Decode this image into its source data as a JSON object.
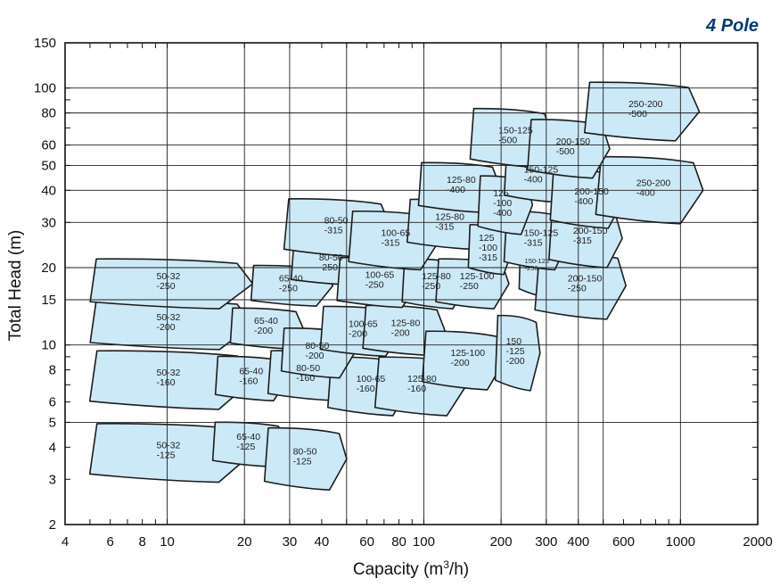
{
  "header": {
    "title": "4 Pole",
    "title_color": "#003a7a"
  },
  "colors": {
    "tile_fill": "#cce9f7",
    "tile_stroke": "#1c1c1c",
    "grid": "#222222"
  },
  "chart_data": {
    "type": "area",
    "title": "4 Pole",
    "xlabel": "Capacity (m3/h)",
    "ylabel": "Total Head (m)",
    "x_scale": "log",
    "y_scale": "log",
    "xlim": [
      4,
      2000
    ],
    "ylim": [
      2,
      150
    ],
    "grid": true,
    "x_ticks": [
      {
        "v": 4,
        "t": "4"
      },
      {
        "v": 6,
        "t": "6"
      },
      {
        "v": 8,
        "t": "8"
      },
      {
        "v": 10,
        "t": "10"
      },
      {
        "v": 20,
        "t": "20"
      },
      {
        "v": 30,
        "t": "30"
      },
      {
        "v": 40,
        "t": "40"
      },
      {
        "v": 60,
        "t": "60"
      },
      {
        "v": 80,
        "t": "80"
      },
      {
        "v": 100,
        "t": "100"
      },
      {
        "v": 200,
        "t": "200"
      },
      {
        "v": 300,
        "t": "300"
      },
      {
        "v": 400,
        "t": "400"
      },
      {
        "v": 600,
        "t": "600"
      },
      {
        "v": 1000,
        "t": "1000"
      },
      {
        "v": 2000,
        "t": "2000"
      }
    ],
    "y_ticks": [
      {
        "v": 2,
        "t": "2"
      },
      {
        "v": 3,
        "t": "3"
      },
      {
        "v": 4,
        "t": "4"
      },
      {
        "v": 5,
        "t": "5"
      },
      {
        "v": 6,
        "t": "6"
      },
      {
        "v": 8,
        "t": "8"
      },
      {
        "v": 10,
        "t": "10"
      },
      {
        "v": 15,
        "t": "15"
      },
      {
        "v": 20,
        "t": "20"
      },
      {
        "v": 30,
        "t": "30"
      },
      {
        "v": 40,
        "t": "40"
      },
      {
        "v": 50,
        "t": "50"
      },
      {
        "v": 60,
        "t": "60"
      },
      {
        "v": 80,
        "t": "80"
      },
      {
        "v": 100,
        "t": "100"
      },
      {
        "v": 150,
        "t": "150"
      }
    ],
    "x_grid": [
      10,
      20,
      30,
      50,
      100,
      200,
      300,
      400,
      500,
      1000
    ],
    "y_grid": [
      5,
      10,
      15,
      20,
      30,
      40,
      50,
      60,
      80,
      100
    ],
    "series": [
      {
        "name": "50-32\n-125",
        "q": 10,
        "h": 3.8,
        "dq": 1.95,
        "dh": 1.3
      },
      {
        "name": "65-40\n-125",
        "q": 20.5,
        "h": 4.1,
        "dq": 1.35,
        "dh": 1.22
      },
      {
        "name": "80-50\n-125",
        "q": 34,
        "h": 3.6,
        "dq": 1.4,
        "dh": 1.32
      },
      {
        "name": "50-32\n-160",
        "q": 10,
        "h": 7.3,
        "dq": 1.95,
        "dh": 1.3
      },
      {
        "name": "65-40\n-160",
        "q": 21,
        "h": 7.4,
        "dq": 1.35,
        "dh": 1.22
      },
      {
        "name": "80-50\n-160",
        "q": 35,
        "h": 7.6,
        "dq": 1.4,
        "dh": 1.25
      },
      {
        "name": "100-65\n-160",
        "q": 60,
        "h": 6.9,
        "dq": 1.4,
        "dh": 1.3
      },
      {
        "name": "125-80\n-160",
        "q": 95,
        "h": 6.9,
        "dq": 1.45,
        "dh": 1.3
      },
      {
        "name": "50-32\n-200",
        "q": 10,
        "h": 12.0,
        "dq": 1.95,
        "dh": 1.25
      },
      {
        "name": "65-40\n-200",
        "q": 24,
        "h": 11.6,
        "dq": 1.35,
        "dh": 1.2
      },
      {
        "name": "80-50\n-200",
        "q": 38,
        "h": 9.3,
        "dq": 1.35,
        "dh": 1.25
      },
      {
        "name": "100-65\n-200",
        "q": 56,
        "h": 11.3,
        "dq": 1.4,
        "dh": 1.25
      },
      {
        "name": "125-80\n-200",
        "q": 82,
        "h": 11.4,
        "dq": 1.4,
        "dh": 1.25
      },
      {
        "name": "125-100\n-200",
        "q": 140,
        "h": 8.7,
        "dq": 1.4,
        "dh": 1.3
      },
      {
        "name": "150\n-125\n-200",
        "q": 230,
        "h": 9.3,
        "dq": 1.2,
        "dh": 1.4
      },
      {
        "name": "50-32\n-250",
        "q": 10,
        "h": 17.3,
        "dq": 1.95,
        "dh": 1.25
      },
      {
        "name": "65-40\n-250",
        "q": 30,
        "h": 17.0,
        "dq": 1.4,
        "dh": 1.2
      },
      {
        "name": "80-50\n-250",
        "q": 43,
        "h": 20.5,
        "dq": 1.4,
        "dh": 1.2
      },
      {
        "name": "100-65\n-250",
        "q": 65,
        "h": 17.5,
        "dq": 1.4,
        "dh": 1.25
      },
      {
        "name": "125-80\n-250",
        "q": 108,
        "h": 17.3,
        "dq": 1.3,
        "dh": 1.25
      },
      {
        "name": "125-100\n-250",
        "q": 152,
        "h": 17.3,
        "dq": 1.35,
        "dh": 1.25
      },
      {
        "name": "150-125\n-250",
        "q": 272,
        "h": 20.0,
        "dq": 1.15,
        "dh": 1.3
      },
      {
        "name": "200-150\n-250",
        "q": 400,
        "h": 17.0,
        "dq": 1.45,
        "dh": 1.35
      },
      {
        "name": "80-50\n-315",
        "q": 45,
        "h": 28.5,
        "dq": 1.55,
        "dh": 1.3
      },
      {
        "name": "100-65\n-315",
        "q": 75,
        "h": 25.5,
        "dq": 1.45,
        "dh": 1.3
      },
      {
        "name": "125-80\n-315",
        "q": 122,
        "h": 29.5,
        "dq": 1.4,
        "dh": 1.25
      },
      {
        "name": "125\n-100\n-315",
        "q": 180,
        "h": 23.5,
        "dq": 1.2,
        "dh": 1.25
      },
      {
        "name": "150-125\n-315",
        "q": 270,
        "h": 25.5,
        "dq": 1.3,
        "dh": 1.3
      },
      {
        "name": "200-150\n-315",
        "q": 420,
        "h": 26.0,
        "dq": 1.35,
        "dh": 1.3
      },
      {
        "name": "125-80\n-400",
        "q": 135,
        "h": 41.0,
        "dq": 1.4,
        "dh": 1.25
      },
      {
        "name": "125\n-100\n-400",
        "q": 205,
        "h": 35.0,
        "dq": 1.25,
        "dh": 1.3
      },
      {
        "name": "150-125\n-400",
        "q": 270,
        "h": 45.0,
        "dq": 1.3,
        "dh": 1.25
      },
      {
        "name": "200-150\n-400",
        "q": 425,
        "h": 37.0,
        "dq": 1.35,
        "dh": 1.3
      },
      {
        "name": "250-200\n-400",
        "q": 740,
        "h": 40.0,
        "dq": 1.55,
        "dh": 1.35
      },
      {
        "name": "150-125\n-500",
        "q": 215,
        "h": 64.0,
        "dq": 1.4,
        "dh": 1.3
      },
      {
        "name": "200-150\n-500",
        "q": 360,
        "h": 58.0,
        "dq": 1.4,
        "dh": 1.3
      },
      {
        "name": "250-200\n-500",
        "q": 690,
        "h": 81.0,
        "dq": 1.6,
        "dh": 1.3
      }
    ]
  }
}
